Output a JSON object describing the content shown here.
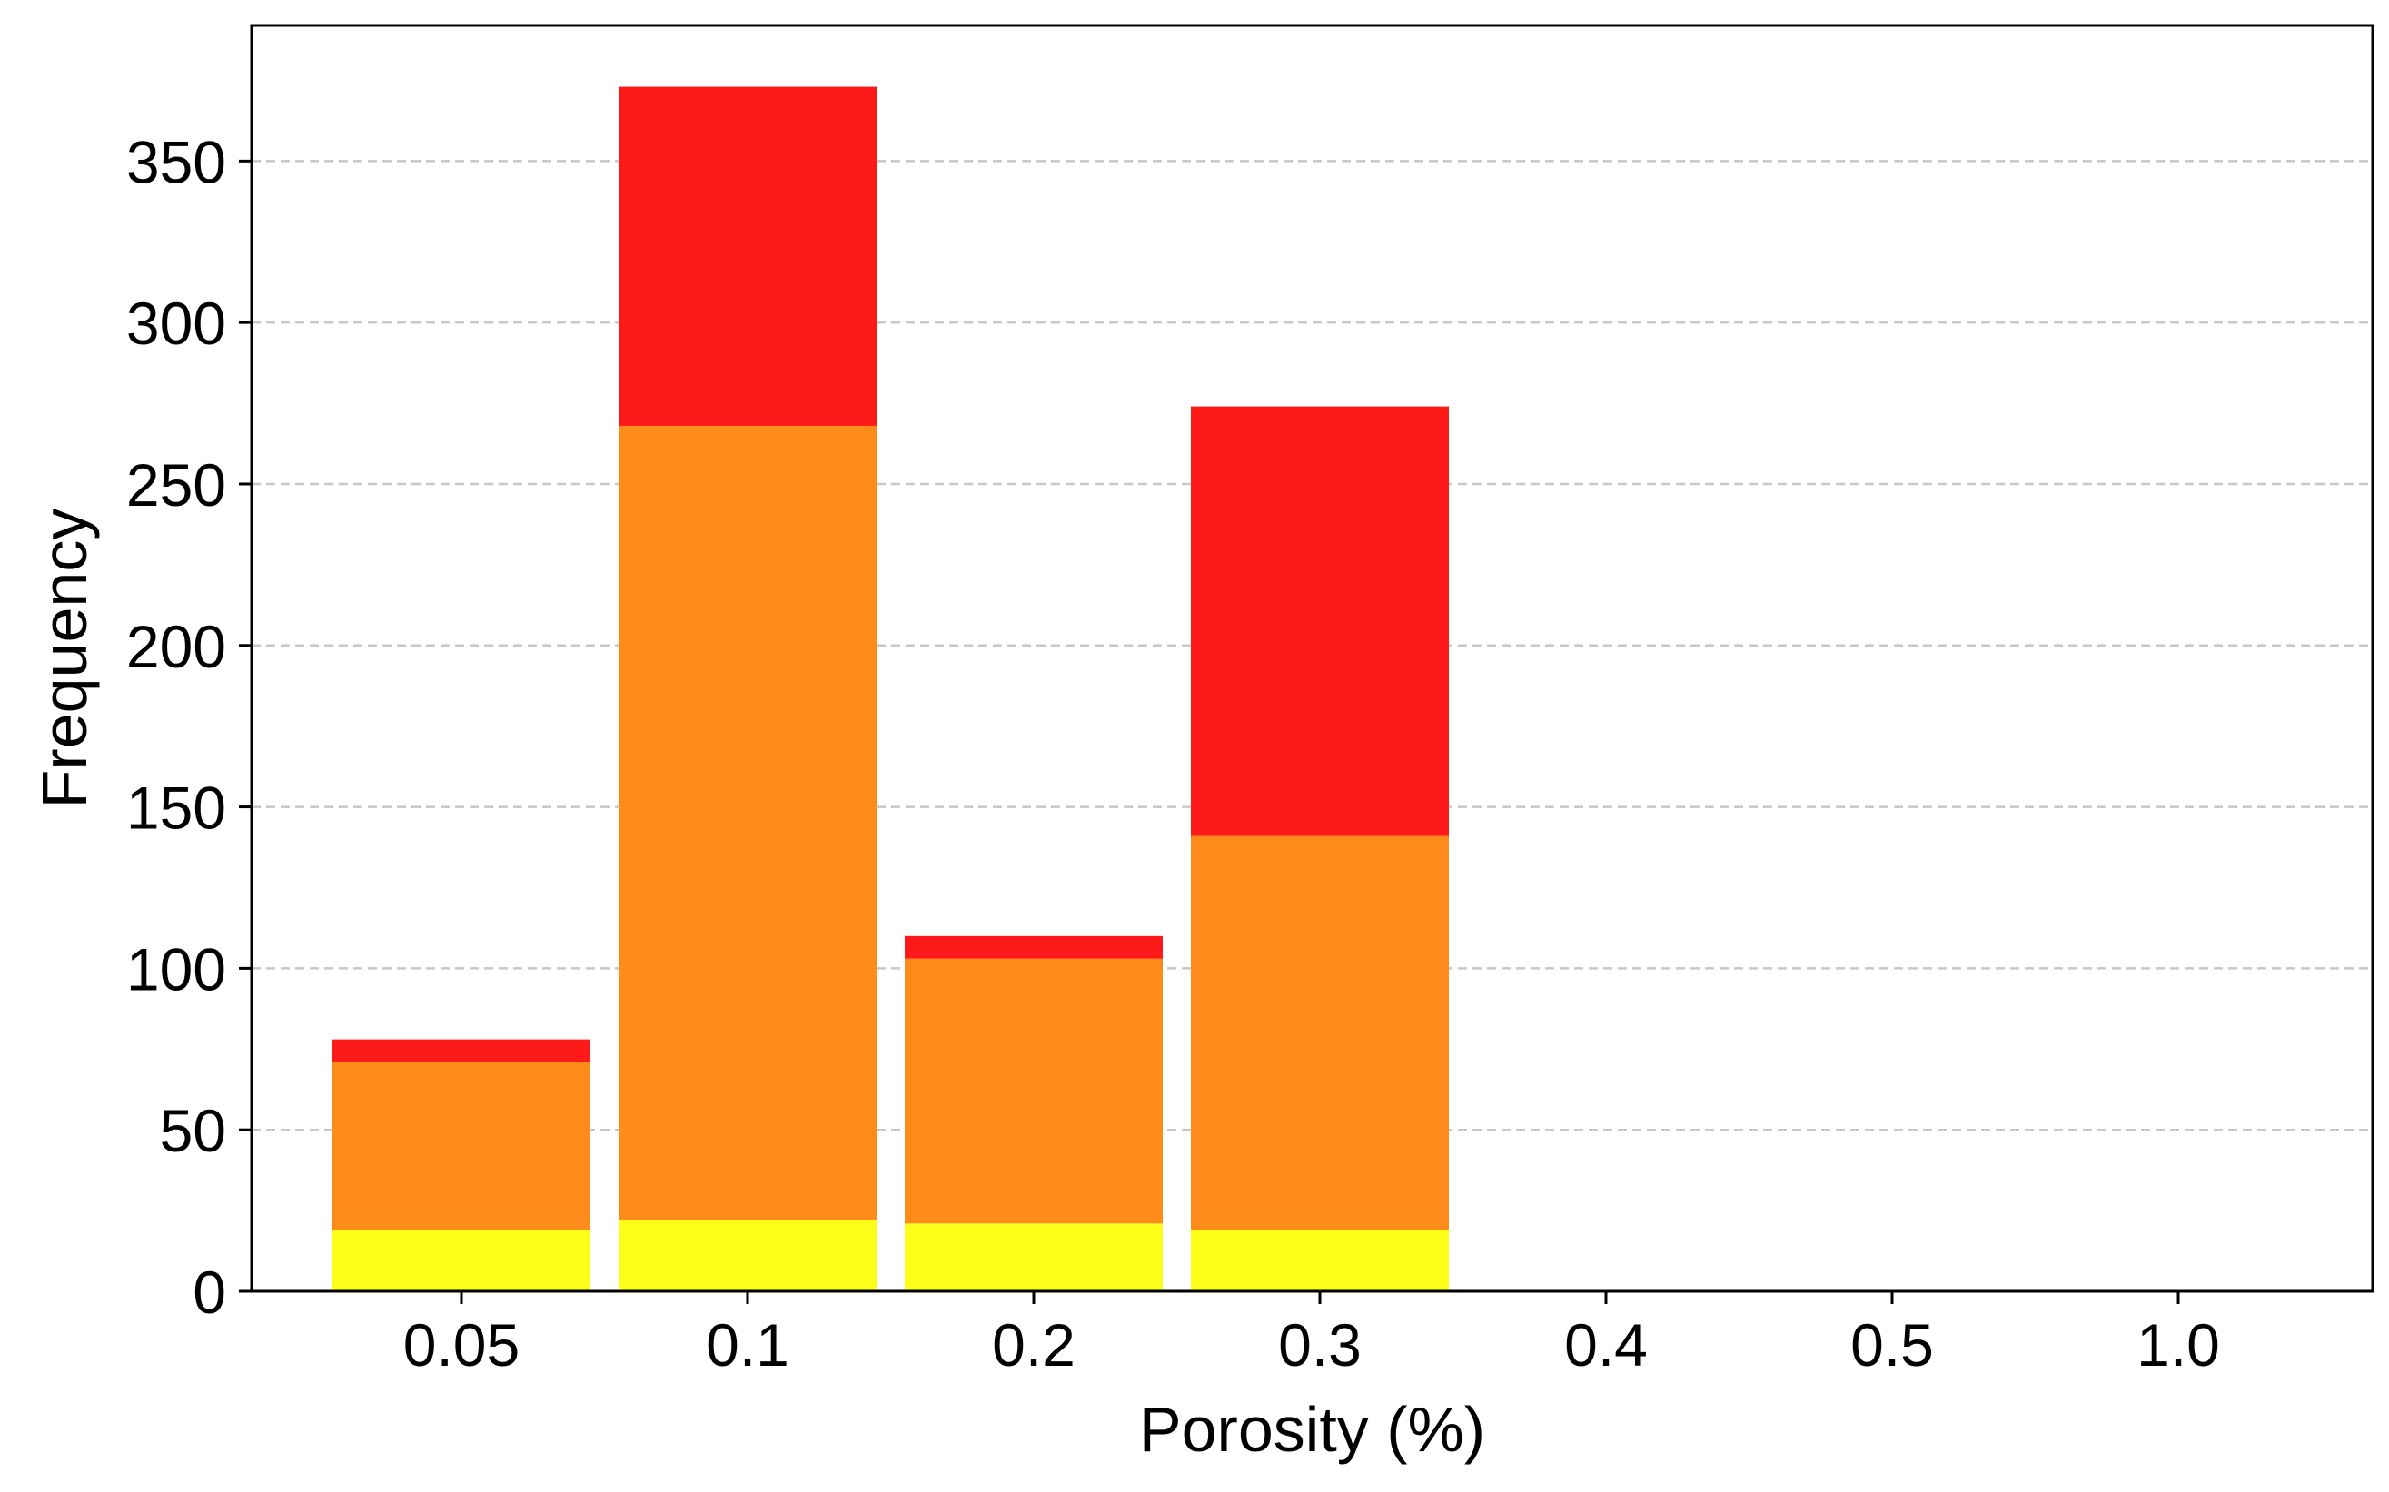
{
  "chart_data": {
    "type": "bar",
    "stacked": true,
    "categories": [
      "0.05",
      "0.1",
      "0.2",
      "0.3",
      "0.4",
      "0.5",
      "1.0"
    ],
    "series": [
      {
        "color": "#ffff1a",
        "values": [
          19,
          22,
          21,
          19,
          0,
          0,
          0
        ]
      },
      {
        "color": "#ff8c1a",
        "values": [
          52,
          246,
          82,
          122,
          0,
          0,
          0
        ]
      },
      {
        "color": "#ff1a1a",
        "values": [
          7,
          105,
          7,
          133,
          0,
          0,
          0
        ]
      }
    ],
    "title": "",
    "xlabel": "Porosity (%)",
    "ylabel": "Frequency",
    "ylim": [
      0,
      392
    ],
    "yticks": [
      0,
      50,
      100,
      150,
      200,
      250,
      300,
      350
    ],
    "grid": "horizontal dashed",
    "legend": "none"
  }
}
